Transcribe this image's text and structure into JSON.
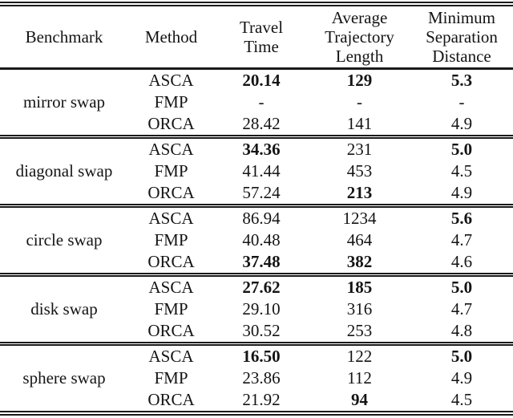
{
  "page": {
    "background_color": "#ffffff",
    "text_color": "#141414",
    "rule_color": "#1a1a1a"
  },
  "table": {
    "headers": [
      {
        "id": "benchmark",
        "label": "Benchmark"
      },
      {
        "id": "method",
        "label": "Method"
      },
      {
        "id": "travel_time",
        "label": "Travel\nTime"
      },
      {
        "id": "avg_traj_len",
        "label": "Average\nTrajectory\nLength"
      },
      {
        "id": "min_sep_dist",
        "label": "Minimum\nSeparation\nDistance"
      }
    ],
    "blocks": [
      {
        "benchmark": "mirror swap",
        "rows": [
          {
            "method": "ASCA",
            "travel_time": {
              "value": "20.14",
              "bold": true
            },
            "avg_traj_len": {
              "value": "129",
              "bold": true
            },
            "min_sep_dist": {
              "value": "5.3",
              "bold": true
            }
          },
          {
            "method": "FMP",
            "travel_time": {
              "value": "-",
              "bold": false
            },
            "avg_traj_len": {
              "value": "-",
              "bold": false
            },
            "min_sep_dist": {
              "value": "-",
              "bold": false
            }
          },
          {
            "method": "ORCA",
            "travel_time": {
              "value": "28.42",
              "bold": false
            },
            "avg_traj_len": {
              "value": "141",
              "bold": false
            },
            "min_sep_dist": {
              "value": "4.9",
              "bold": false
            }
          }
        ]
      },
      {
        "benchmark": "diagonal swap",
        "rows": [
          {
            "method": "ASCA",
            "travel_time": {
              "value": "34.36",
              "bold": true
            },
            "avg_traj_len": {
              "value": "231",
              "bold": false
            },
            "min_sep_dist": {
              "value": "5.0",
              "bold": true
            }
          },
          {
            "method": "FMP",
            "travel_time": {
              "value": "41.44",
              "bold": false
            },
            "avg_traj_len": {
              "value": "453",
              "bold": false
            },
            "min_sep_dist": {
              "value": "4.5",
              "bold": false
            }
          },
          {
            "method": "ORCA",
            "travel_time": {
              "value": "57.24",
              "bold": false
            },
            "avg_traj_len": {
              "value": "213",
              "bold": true
            },
            "min_sep_dist": {
              "value": "4.9",
              "bold": false
            }
          }
        ]
      },
      {
        "benchmark": "circle swap",
        "rows": [
          {
            "method": "ASCA",
            "travel_time": {
              "value": "86.94",
              "bold": false
            },
            "avg_traj_len": {
              "value": "1234",
              "bold": false
            },
            "min_sep_dist": {
              "value": "5.6",
              "bold": true
            }
          },
          {
            "method": "FMP",
            "travel_time": {
              "value": "40.48",
              "bold": false
            },
            "avg_traj_len": {
              "value": "464",
              "bold": false
            },
            "min_sep_dist": {
              "value": "4.7",
              "bold": false
            }
          },
          {
            "method": "ORCA",
            "travel_time": {
              "value": "37.48",
              "bold": true
            },
            "avg_traj_len": {
              "value": "382",
              "bold": true
            },
            "min_sep_dist": {
              "value": "4.6",
              "bold": false
            }
          }
        ]
      },
      {
        "benchmark": "disk swap",
        "rows": [
          {
            "method": "ASCA",
            "travel_time": {
              "value": "27.62",
              "bold": true
            },
            "avg_traj_len": {
              "value": "185",
              "bold": true
            },
            "min_sep_dist": {
              "value": "5.0",
              "bold": true
            }
          },
          {
            "method": "FMP",
            "travel_time": {
              "value": "29.10",
              "bold": false
            },
            "avg_traj_len": {
              "value": "316",
              "bold": false
            },
            "min_sep_dist": {
              "value": "4.7",
              "bold": false
            }
          },
          {
            "method": "ORCA",
            "travel_time": {
              "value": "30.52",
              "bold": false
            },
            "avg_traj_len": {
              "value": "253",
              "bold": false
            },
            "min_sep_dist": {
              "value": "4.8",
              "bold": false
            }
          }
        ]
      },
      {
        "benchmark": "sphere swap",
        "rows": [
          {
            "method": "ASCA",
            "travel_time": {
              "value": "16.50",
              "bold": true
            },
            "avg_traj_len": {
              "value": "122",
              "bold": false
            },
            "min_sep_dist": {
              "value": "5.0",
              "bold": true
            }
          },
          {
            "method": "FMP",
            "travel_time": {
              "value": "23.86",
              "bold": false
            },
            "avg_traj_len": {
              "value": "112",
              "bold": false
            },
            "min_sep_dist": {
              "value": "4.9",
              "bold": false
            }
          },
          {
            "method": "ORCA",
            "travel_time": {
              "value": "21.92",
              "bold": false
            },
            "avg_traj_len": {
              "value": "94",
              "bold": true
            },
            "min_sep_dist": {
              "value": "4.5",
              "bold": false
            }
          }
        ]
      }
    ]
  }
}
